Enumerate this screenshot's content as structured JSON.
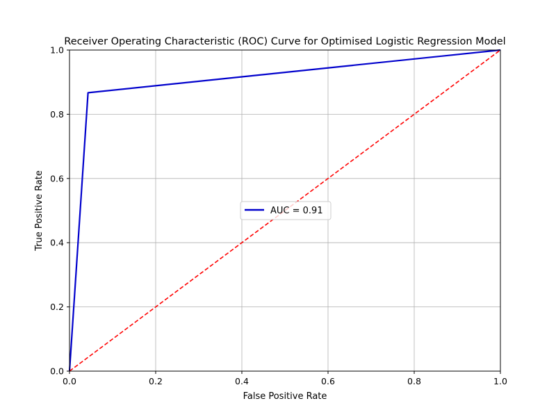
{
  "chart_data": {
    "type": "line",
    "title": "Receiver Operating Characteristic (ROC) Curve for Optimised Logistic Regression Model",
    "xlabel": "False Positive Rate",
    "ylabel": "True Positive Rate",
    "xlim": [
      0.0,
      1.0
    ],
    "ylim": [
      0.0,
      1.0
    ],
    "xticks": [
      0.0,
      0.2,
      0.4,
      0.6,
      0.8,
      1.0
    ],
    "yticks": [
      0.0,
      0.2,
      0.4,
      0.6,
      0.8,
      1.0
    ],
    "xtick_labels": [
      "0.0",
      "0.2",
      "0.4",
      "0.6",
      "0.8",
      "1.0"
    ],
    "ytick_labels": [
      "0.0",
      "0.2",
      "0.4",
      "0.6",
      "0.8",
      "1.0"
    ],
    "grid": true,
    "legend_position": "center",
    "series": [
      {
        "name": "AUC = 0.91",
        "color": "#0000cc",
        "style": "solid",
        "x": [
          0.0,
          0.043,
          1.0
        ],
        "y": [
          0.0,
          0.867,
          1.0
        ]
      },
      {
        "color": "#ff0000",
        "style": "dashed",
        "x": [
          0.0,
          1.0
        ],
        "y": [
          0.0,
          1.0
        ]
      }
    ]
  }
}
